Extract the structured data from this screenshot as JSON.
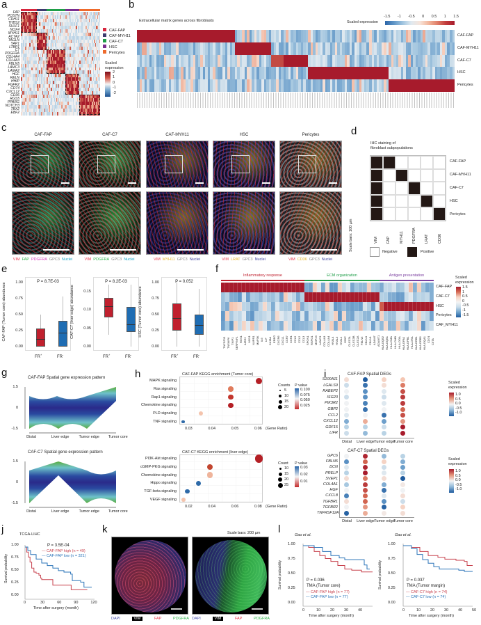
{
  "panels": {
    "a": {
      "label": "a",
      "genes": [
        "FAP",
        "POSTN",
        "CDH11",
        "THBS2",
        "SULF1",
        "NOX4",
        "MYH11",
        "ACTA2",
        "TAGLN",
        "YAP1",
        "LTBP1",
        "C7",
        "PDGFRA",
        "COL4A4",
        "COL4A3",
        "FBLN5",
        "LAMC3",
        "LAMA2",
        "HGF",
        "RELN",
        "HHIP",
        "FGFR2",
        "CD74",
        "CXCL12",
        "CD36",
        "RGS5",
        "PPARG",
        "NOTCH3",
        "TBX2",
        "EBF2"
      ],
      "legend": [
        {
          "name": "CAF-FAP",
          "color": "#d7263d"
        },
        {
          "name": "CAF-MYH11",
          "color": "#3d3b6e"
        },
        {
          "name": "CAF-C7",
          "color": "#1f9e48"
        },
        {
          "name": "HSC",
          "color": "#7b2d8e"
        },
        {
          "name": "Pericytes",
          "color": "#ee6a2c"
        }
      ],
      "scale_title": "Scaled expression",
      "scale_ticks": [
        "2",
        "1",
        "0",
        "-1",
        "-2"
      ]
    },
    "b": {
      "label": "b",
      "title": "Extracellular matrix genes across fibroblasts",
      "scale_title": "Scaled expression",
      "scale_ticks": [
        "-1.5",
        "-1",
        "-0.5",
        "0",
        "0.5",
        "1",
        "1.5"
      ],
      "rows": [
        "CAF-FAP",
        "CAF-MYH11",
        "CAF-C7",
        "HSC",
        "Pericytes"
      ]
    },
    "c": {
      "label": "c",
      "columns": [
        {
          "title": "CAF-FAP",
          "markers": [
            {
              "t": "VIM",
              "c": "#e8364a"
            },
            {
              "t": "FAP",
              "c": "#2db34a"
            },
            {
              "t": "PDGFRA",
              "c": "#d63bbd"
            },
            {
              "t": "GPC3",
              "c": "#888"
            },
            {
              "t": "Nuclei",
              "c": "#1aa7c9"
            }
          ]
        },
        {
          "title": "CAF-C7",
          "markers": [
            {
              "t": "VIM",
              "c": "#e8364a"
            },
            {
              "t": "PDGFRA",
              "c": "#2db34a"
            },
            {
              "t": "GPC3",
              "c": "#888"
            },
            {
              "t": "Nuclei",
              "c": "#1aa7c9"
            }
          ]
        },
        {
          "title": "CAF-MYH11",
          "markers": [
            {
              "t": "VIM",
              "c": "#e8364a"
            },
            {
              "t": "MYH11",
              "c": "#e6b422"
            },
            {
              "t": "GPC3",
              "c": "#888"
            },
            {
              "t": "Nuclei",
              "c": "#3a3fa0"
            }
          ]
        },
        {
          "title": "HSC",
          "markers": [
            {
              "t": "VIM",
              "c": "#e8364a"
            },
            {
              "t": "LRAT",
              "c": "#e6b422"
            },
            {
              "t": "GPC3",
              "c": "#888"
            },
            {
              "t": "Nuclei",
              "c": "#3a3fa0"
            }
          ]
        },
        {
          "title": "Pericytes",
          "markers": [
            {
              "t": "VIM",
              "c": "#e8364a"
            },
            {
              "t": "CD36",
              "c": "#e6b422"
            },
            {
              "t": "GPC3",
              "c": "#888"
            },
            {
              "t": "Nuclei",
              "c": "#3a3fa0"
            }
          ]
        }
      ],
      "scale_bar_note": "Scale bars: 100 µm"
    },
    "d": {
      "label": "d",
      "title_line1": "IHC staining of",
      "title_line2": "fibroblast subpopulations",
      "rows": [
        "CAF-FAP",
        "CAF-MYH11",
        "CAF-C7",
        "HSC",
        "Pericytes"
      ],
      "cols": [
        "VIM",
        "FAP",
        "MYH11",
        "PDGFRA",
        "LRAT",
        "CD36"
      ],
      "matrix": [
        [
          1,
          1,
          0,
          0,
          0,
          0
        ],
        [
          1,
          0,
          1,
          0,
          0,
          0
        ],
        [
          1,
          0,
          0,
          1,
          0,
          0
        ],
        [
          1,
          0,
          0,
          0,
          1,
          0
        ],
        [
          1,
          0,
          0,
          0,
          0,
          1
        ]
      ],
      "legend_negative": "Negative",
      "legend_positive": "Positive"
    },
    "e": {
      "label": "e",
      "plots": [
        {
          "p": "P = 8.7E-03",
          "ylabel": "CAF-FAP (Tumor core) abundance",
          "yticks": [
            "1.00",
            "0.75",
            "0.50",
            "0.25",
            "0.00"
          ],
          "ymax": 1.0,
          "boxes": [
            {
              "g": "FR+",
              "q1": 0,
              "med": 0.12,
              "q3": 0.28,
              "lo": 0,
              "hi": 0.5,
              "color": "#c0202e"
            },
            {
              "g": "FR-",
              "q1": 0,
              "med": 0.22,
              "q3": 0.4,
              "lo": 0,
              "hi": 0.78,
              "color": "#1f6db3"
            }
          ]
        },
        {
          "p": "P = 8.2E-03",
          "ylabel": "CAF-C7 (liver edge) abundance",
          "yticks": [
            "0.15",
            "0.10",
            "0.05",
            "0.00"
          ],
          "ymax": 0.175,
          "boxes": [
            {
              "g": "FR+",
              "q1": 0.08,
              "med": 0.11,
              "q3": 0.133,
              "lo": 0.033,
              "hi": 0.17,
              "color": "#c0202e"
            },
            {
              "g": "FR-",
              "q1": 0.04,
              "med": 0.06,
              "q3": 0.108,
              "lo": 0,
              "hi": 0.17,
              "color": "#1f6db3"
            }
          ]
        },
        {
          "p": "P = 0.052",
          "ylabel": "HSC (Tumor core) abundance",
          "yticks": [
            "1.00",
            "0.75",
            "0.50",
            "0.25",
            "0.00"
          ],
          "ymax": 1.0,
          "boxes": [
            {
              "g": "FR+",
              "q1": 0.25,
              "med": 0.45,
              "q3": 0.67,
              "lo": 0,
              "hi": 1.0,
              "color": "#c0202e"
            },
            {
              "g": "FR-",
              "q1": 0.19,
              "med": 0.34,
              "q3": 0.5,
              "lo": 0,
              "hi": 0.9,
              "color": "#1f6db3"
            }
          ]
        }
      ]
    },
    "f": {
      "label": "f",
      "groups": [
        {
          "name": "Inflammatory response",
          "color": "#c0202e"
        },
        {
          "name": "ECM organization",
          "color": "#1f9e48"
        },
        {
          "name": "Antigen presentation",
          "color": "#7b3fa0"
        }
      ],
      "rows": [
        "CAF-FAP",
        "CAF-C7",
        "HSC",
        "Pericytes",
        "CAF_MYH11"
      ],
      "genes": [
        "TNFSF15",
        "TNFAIP6",
        "TNIP1",
        "SERPINF1",
        "RGS1",
        "AIRE2",
        "NOX1",
        "NUPR1",
        "MAP3K",
        "IL6",
        "LIF",
        "INHBA",
        "EREG",
        "CXCR6",
        "CXCL1",
        "CCR7",
        "CCR1",
        "CCL5",
        "CCL2",
        "CCL3",
        "SPON1",
        "RSPO1",
        "MMP23",
        "LAMC3",
        "COL4A3",
        "COL4A4",
        "HYAL4",
        "HYAL3",
        "HYAL1",
        "GRIP",
        "CLEC3L",
        "CLEC3B",
        "CLEC2A",
        "FBLN5",
        "CBLN4",
        "CBLN1",
        "ADAM7",
        "ADAMT1",
        "HLA-DQB2",
        "HLA-DQB1",
        "HLA-DMA",
        "HLA-DMB",
        "HLA-DOA",
        "HLA-DPA1",
        "HLA-DPB1",
        "HLA-DRA",
        "HLA-DRB1",
        "HLA-DRB5",
        "HLA-DQA1",
        "CD74",
        "CIITA"
      ],
      "scale_title1": "Scaled",
      "scale_title2": "expression",
      "scale_ticks": [
        "1.5",
        "1",
        "0.5",
        "0",
        "-0.5",
        "-1",
        "-1.5"
      ]
    },
    "g": {
      "label": "g",
      "plots": [
        {
          "title": "CAF-FAP Spatial gene expression pattern",
          "xticks": [
            "Distal",
            "Liver edge",
            "Tumor edge",
            "Tumor core"
          ],
          "yticks": [
            "1.5",
            "0",
            "-1.5"
          ]
        },
        {
          "title": "CAF-C7 Spatial gene expression pattern",
          "xticks": [
            "Distal",
            "Liver edge",
            "Tumor edge",
            "Tumor core"
          ],
          "yticks": [
            "1.5",
            "0",
            "-1.5"
          ]
        }
      ]
    },
    "h": {
      "label": "h",
      "plots": [
        {
          "title": "CAF-FAP KEGG enrichment (Tumor core)",
          "xlabel": "(Gene Ratio)",
          "xticks": [
            "0.03",
            "0.04",
            "0.05",
            "0.06"
          ],
          "count_title": "Counts",
          "count_ticks": [
            "5",
            "10",
            "15",
            "20"
          ],
          "p_title": "P value",
          "p_ticks": [
            "0.100",
            "0.075",
            "0.050",
            "0.025"
          ],
          "terms": [
            {
              "t": "MAPK signaling",
              "x": 0.067,
              "n": 20,
              "c": "#b41f25"
            },
            {
              "t": "Ras signaling",
              "x": 0.051,
              "n": 15,
              "c": "#e07b5c"
            },
            {
              "t": "Rap1 signaling",
              "x": 0.051,
              "n": 15,
              "c": "#c2352c"
            },
            {
              "t": "Chemokine signaling",
              "x": 0.051,
              "n": 15,
              "c": "#b41f25"
            },
            {
              "t": "PLD signaling",
              "x": 0.034,
              "n": 10,
              "c": "#f4c4ad"
            },
            {
              "t": "TNF signaling",
              "x": 0.024,
              "n": 6,
              "c": "#2e6aa8"
            }
          ]
        },
        {
          "title": "CAF-C7 KEGG enrichment (liver edge)",
          "xlabel": "(Gene Ratio)",
          "xticks": [
            "0.02",
            "0.04",
            "0.06",
            "0.08"
          ],
          "count_title": "Count",
          "count_ticks": [
            "10",
            "15",
            "20",
            "25"
          ],
          "p_title": "P value",
          "p_ticks": [
            "0.03",
            "0.02",
            "0.01"
          ],
          "terms": [
            {
              "t": "PI3K-Akt signaling",
              "x": 0.096,
              "n": 27,
              "c": "#b41f25"
            },
            {
              "t": "cGMP-PKG signaling",
              "x": 0.048,
              "n": 18,
              "c": "#c2452f"
            },
            {
              "t": "Chemokine signaling",
              "x": 0.048,
              "n": 18,
              "c": "#efb49b"
            },
            {
              "t": "Hippo signaling",
              "x": 0.037,
              "n": 14,
              "c": "#2e6aa8"
            },
            {
              "t": "TGF-beta signaling",
              "x": 0.026,
              "n": 12,
              "c": "#2e6aa8"
            },
            {
              "t": "VEGF signaling",
              "x": 0.022,
              "n": 9,
              "c": "#f4c4ad"
            }
          ]
        }
      ]
    },
    "i": {
      "label": "i",
      "plots": [
        {
          "title": "CAF-FAP  Spatial DEGs",
          "genes": [
            "S100A11",
            "LGALS9",
            "RABEP2",
            "ISG20",
            "PIK3R2",
            "GBP2",
            "CCL2",
            "CXCL12",
            "GDF15",
            "LIFR"
          ],
          "vals": [
            [
              0.2,
              -1.2,
              0.3,
              0.4
            ],
            [
              -0.2,
              -1.0,
              0.2,
              0.7
            ],
            [
              0,
              -0.8,
              -0.1,
              0.9
            ],
            [
              -0.2,
              -0.8,
              -0.2,
              1.0
            ],
            [
              0,
              -0.9,
              -0.1,
              1.0
            ],
            [
              0,
              -1.0,
              0,
              0.8
            ],
            [
              -0.1,
              0,
              -1.0,
              0.9
            ],
            [
              -0.6,
              0.5,
              -0.7,
              0.6
            ],
            [
              -0.3,
              -0.3,
              -0.2,
              1.2
            ],
            [
              -0.2,
              -0.5,
              -0.3,
              1.2
            ]
          ]
        },
        {
          "title": "CAF-C7 Spatial DEGs",
          "genes": [
            "GPC6",
            "FBLN5",
            "DCN",
            "PRELP",
            "SVEP1",
            "COL4A1",
            "HGF",
            "CXCL8",
            "TGFBR1",
            "TGFBR2",
            "TNFRSF12A"
          ],
          "vals": [
            [
              0,
              1.1,
              -0.5,
              -0.3
            ],
            [
              -0.8,
              0.8,
              0.3,
              -0.6
            ],
            [
              -0.1,
              1.1,
              -0.2,
              -0.7
            ],
            [
              -0.3,
              1.2,
              -0.1,
              -0.3
            ],
            [
              0.2,
              0.7,
              0.2,
              -1.2
            ],
            [
              -0.4,
              1.0,
              -0.6,
              0.1
            ],
            [
              0,
              0.9,
              -1.0,
              0
            ],
            [
              -0.9,
              0.8,
              -0.1,
              0.2
            ],
            [
              0.2,
              0.8,
              -0.8,
              -0.2
            ],
            [
              0,
              0.6,
              -1.1,
              0.3
            ],
            [
              -1.1,
              0.5,
              0.1,
              0.2
            ]
          ]
        }
      ],
      "xticks": [
        "Distal",
        "Liver edge",
        "Tumor edge",
        "Tumor core"
      ],
      "scale_title1": "Scaled",
      "scale_title2": "expression",
      "scale_ticks": [
        "1.0",
        "0.5",
        "0.0",
        "-0.5",
        "-1.0"
      ]
    },
    "j": {
      "label": "j",
      "title": "TCGA-LIHC",
      "p": "P = 3.5E-04",
      "legend": [
        {
          "t": "CAF-FAP high (n = 49)",
          "c": "#c7404c"
        },
        {
          "t": "CAF-FAP low (n = 321)",
          "c": "#2a73b8"
        }
      ],
      "ylabel": "Survival probability",
      "xlabel": "Time after surgery (month)",
      "yticks": [
        "1.00",
        "0.75",
        "0.50",
        "0.25",
        "0.00"
      ],
      "xticks": [
        "0",
        "30",
        "60",
        "90",
        "120"
      ]
    },
    "k": {
      "label": "k",
      "scale_note": "Scale bars: 200 µm",
      "markers": [
        {
          "t": "DAPI",
          "c": "#4a52b0"
        },
        {
          "t": "VIM",
          "c": "#fff",
          "bg": "#000"
        },
        {
          "t": "FAP",
          "c": "#e8364a"
        },
        {
          "t": "PDGFRA",
          "c": "#2db34a"
        }
      ]
    },
    "l": {
      "label": "l",
      "plots": [
        {
          "source": "Gao et al.",
          "p": "P = 0.036",
          "cohort": "TMA (Tumor core)",
          "legend": [
            {
              "t": "CAF-FAP high (n = 77)",
              "c": "#c7404c"
            },
            {
              "t": "CAF-FAP low (n = 77)",
              "c": "#2a73b8"
            }
          ],
          "xticks": [
            "0",
            "10",
            "20",
            "30",
            "40"
          ]
        },
        {
          "source": "Gao et al.",
          "p": "P = 0.037",
          "cohort": "TMA (Tumor margin)",
          "legend": [
            {
              "t": "CAF-C7 high (n = 74)",
              "c": "#c7404c"
            },
            {
              "t": "CAF-C7 low (n = 74)",
              "c": "#2a73b8"
            }
          ],
          "xticks": [
            "0",
            "10",
            "20",
            "30",
            "40",
            "50"
          ]
        }
      ],
      "ylabel": "Survival probability",
      "xlabel": "Time after surgery (month)",
      "yticks": [
        "1.00",
        "0.75",
        "0.50",
        "0.25",
        "0.00"
      ]
    }
  }
}
